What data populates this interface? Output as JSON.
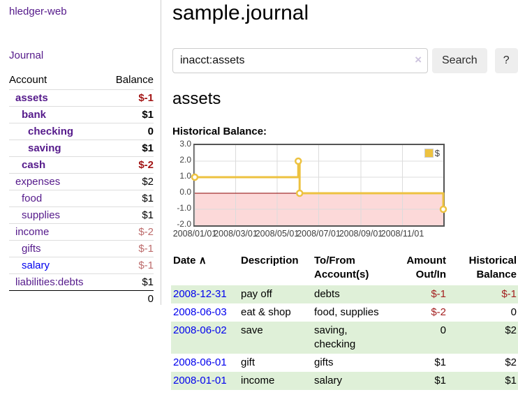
{
  "sidebar": {
    "brand": "hledger-web",
    "journal_link": "Journal",
    "accounts": {
      "account_header": "Account",
      "balance_header": "Balance",
      "rows": [
        {
          "name": "assets",
          "balance": "$-1",
          "depth": 1,
          "bold": true,
          "neg": "strong",
          "link": "purple"
        },
        {
          "name": "bank",
          "balance": "$1",
          "depth": 2,
          "bold": true,
          "neg": null,
          "link": "purple"
        },
        {
          "name": "checking",
          "balance": "0",
          "depth": 3,
          "bold": true,
          "neg": null,
          "link": "purple"
        },
        {
          "name": "saving",
          "balance": "$1",
          "depth": 3,
          "bold": true,
          "neg": null,
          "link": "purple"
        },
        {
          "name": "cash",
          "balance": "$-2",
          "depth": 2,
          "bold": true,
          "neg": "strong",
          "link": "purple"
        },
        {
          "name": "expenses",
          "balance": "$2",
          "depth": 1,
          "bold": false,
          "neg": null,
          "link": "purple"
        },
        {
          "name": "food",
          "balance": "$1",
          "depth": 2,
          "bold": false,
          "neg": null,
          "link": "purple"
        },
        {
          "name": "supplies",
          "balance": "$1",
          "depth": 2,
          "bold": false,
          "neg": null,
          "link": "purple"
        },
        {
          "name": "income",
          "balance": "$-2",
          "depth": 1,
          "bold": false,
          "neg": "soft",
          "link": "purple"
        },
        {
          "name": "gifts",
          "balance": "$-1",
          "depth": 2,
          "bold": false,
          "neg": "soft",
          "link": "purple"
        },
        {
          "name": "salary",
          "balance": "$-1",
          "depth": 2,
          "bold": false,
          "neg": "soft",
          "link": "blue"
        },
        {
          "name": "liabilities:debts",
          "balance": "$1",
          "depth": 1,
          "bold": false,
          "neg": null,
          "link": "purple"
        }
      ],
      "total": "0"
    }
  },
  "main": {
    "title": "sample.journal",
    "search": {
      "value": "inacct:assets",
      "clear_icon": "×",
      "button_label": "Search",
      "help_label": "?"
    },
    "account_heading": "assets",
    "chart_title": "Historical Balance:"
  },
  "chart_data": {
    "type": "line",
    "step": true,
    "title": "Historical Balance",
    "legend": {
      "position": "top-right",
      "entries": [
        "$"
      ]
    },
    "series": [
      {
        "name": "$",
        "color": "#edc240",
        "points": [
          {
            "date": "2008-01-01",
            "value": 1.0
          },
          {
            "date": "2008-06-01",
            "value": 2.0
          },
          {
            "date": "2008-06-03",
            "value": 0.0
          },
          {
            "date": "2008-12-31",
            "value": -1.0
          }
        ]
      }
    ],
    "x_range": [
      "2008-01-01",
      "2008-12-31"
    ],
    "ylim": [
      -2.0,
      3.0
    ],
    "y_ticks": [
      3.0,
      2.0,
      1.0,
      0.0,
      -1.0,
      -2.0
    ],
    "x_ticks": [
      {
        "date": "2008-01-01",
        "label": "2008/01/01"
      },
      {
        "date": "2008-03-01",
        "label": "2008/03/01"
      },
      {
        "date": "2008-05-01",
        "label": "2008/05/01"
      },
      {
        "date": "2008-07-01",
        "label": "2008/07/01"
      },
      {
        "date": "2008-09-01",
        "label": "2008/09/01"
      },
      {
        "date": "2008-11-01",
        "label": "2008/11/01"
      }
    ],
    "grid": true,
    "negative_region_color": "#fcd9d9",
    "zero_line_color": "#8b0000",
    "grid_color": "#dcdcdc"
  },
  "register": {
    "headers": {
      "date": "Date",
      "sort_arrow": "∧",
      "description": "Description",
      "accounts": "To/From Account(s)",
      "amount": "Amount Out/In",
      "balance": "Historical Balance"
    },
    "rows": [
      {
        "date": "2008-12-31",
        "description": "pay off",
        "accounts": "debts",
        "amount": "$-1",
        "balance": "$-1",
        "amount_neg": true,
        "balance_neg": true
      },
      {
        "date": "2008-06-03",
        "description": "eat & shop",
        "accounts": "food, supplies",
        "amount": "$-2",
        "balance": "0",
        "amount_neg": true,
        "balance_neg": false
      },
      {
        "date": "2008-06-02",
        "description": "save",
        "accounts": "saving, checking",
        "amount": "0",
        "balance": "$2",
        "amount_neg": false,
        "balance_neg": false
      },
      {
        "date": "2008-06-01",
        "description": "gift",
        "accounts": "gifts",
        "amount": "$1",
        "balance": "$2",
        "amount_neg": false,
        "balance_neg": false
      },
      {
        "date": "2008-01-01",
        "description": "income",
        "accounts": "salary",
        "amount": "$1",
        "balance": "$1",
        "amount_neg": false,
        "balance_neg": false
      }
    ]
  }
}
